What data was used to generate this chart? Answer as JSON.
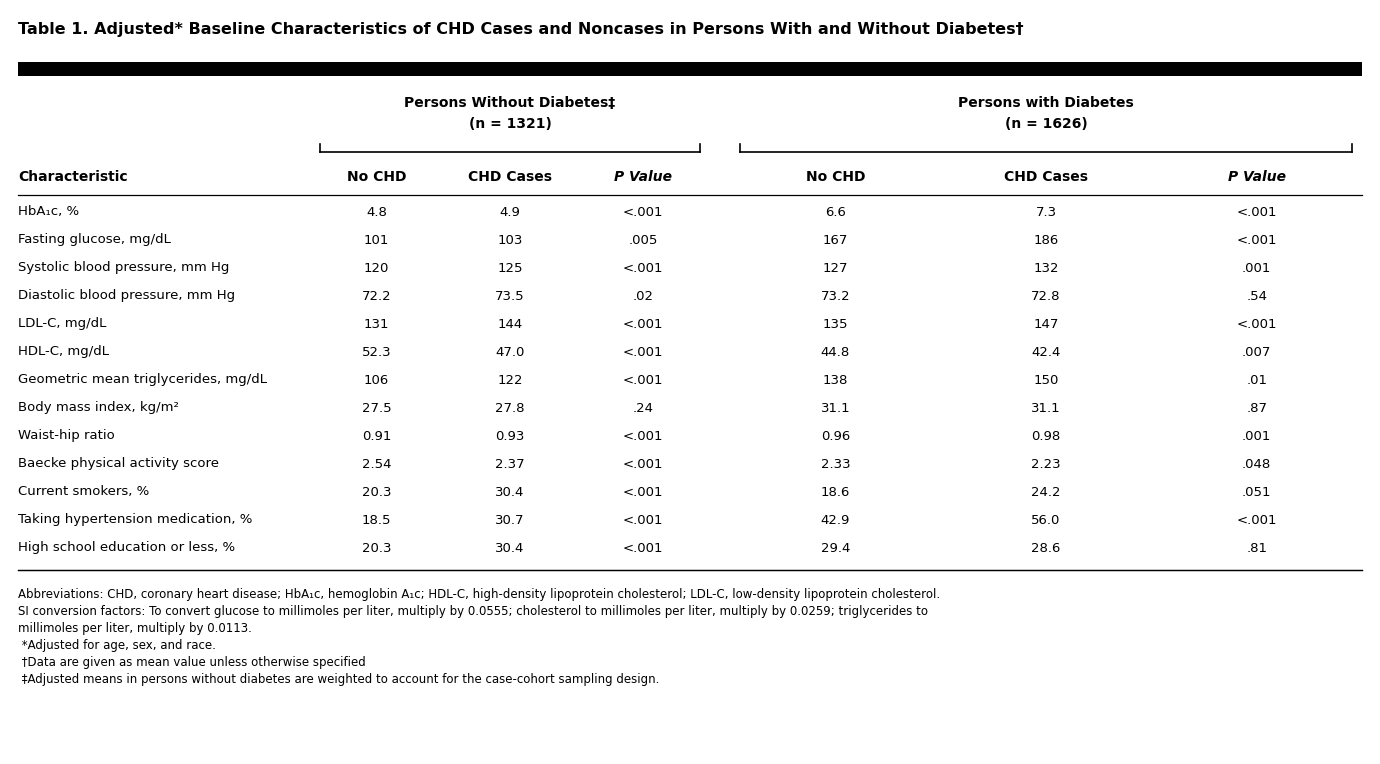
{
  "title": "Table 1. Adjusted* Baseline Characteristics of CHD Cases and Noncases in Persons With and Without Diabetes†",
  "group1_header": "Persons Without Diabetes‡",
  "group1_n": "(n = 1321)",
  "group2_header": "Persons with Diabetes",
  "group2_n": "(n = 1626)",
  "col_headers": [
    "No CHD",
    "CHD Cases",
    "P Value",
    "No CHD",
    "CHD Cases",
    "P Value"
  ],
  "characteristic_col": "Characteristic",
  "characteristics": [
    "HbA₁c, %",
    "Fasting glucose, mg/dL",
    "Systolic blood pressure, mm Hg",
    "Diastolic blood pressure, mm Hg",
    "LDL-C, mg/dL",
    "HDL-C, mg/dL",
    "Geometric mean triglycerides, mg/dL",
    "Body mass index, kg/m²",
    "Waist-hip ratio",
    "Baecke physical activity score",
    "Current smokers, %",
    "Taking hypertension medication, %",
    "High school education or less, %"
  ],
  "data": [
    [
      "4.8",
      "4.9",
      "<.001",
      "6.6",
      "7.3",
      "<.001"
    ],
    [
      "101",
      "103",
      ".005",
      "167",
      "186",
      "<.001"
    ],
    [
      "120",
      "125",
      "<.001",
      "127",
      "132",
      ".001"
    ],
    [
      "72.2",
      "73.5",
      ".02",
      "73.2",
      "72.8",
      ".54"
    ],
    [
      "131",
      "144",
      "<.001",
      "135",
      "147",
      "<.001"
    ],
    [
      "52.3",
      "47.0",
      "<.001",
      "44.8",
      "42.4",
      ".007"
    ],
    [
      "106",
      "122",
      "<.001",
      "138",
      "150",
      ".01"
    ],
    [
      "27.5",
      "27.8",
      ".24",
      "31.1",
      "31.1",
      ".87"
    ],
    [
      "0.91",
      "0.93",
      "<.001",
      "0.96",
      "0.98",
      ".001"
    ],
    [
      "2.54",
      "2.37",
      "<.001",
      "2.33",
      "2.23",
      ".048"
    ],
    [
      "20.3",
      "30.4",
      "<.001",
      "18.6",
      "24.2",
      ".051"
    ],
    [
      "18.5",
      "30.7",
      "<.001",
      "42.9",
      "56.0",
      "<.001"
    ],
    [
      "20.3",
      "30.4",
      "<.001",
      "29.4",
      "28.6",
      ".81"
    ]
  ],
  "footnote_line1": "Abbreviations: CHD, coronary heart disease; HbA₁c, hemoglobin A₁c; HDL-C, high-density lipoprotein cholesterol; LDL-C, low-density lipoprotein cholesterol.",
  "footnote_line2": "SI conversion factors: To convert glucose to millimoles per liter, multiply by 0.0555; cholesterol to millimoles per liter, multiply by 0.0259; triglycerides to",
  "footnote_line3": "millimoles per liter, multiply by 0.0113.",
  "footnote_line4": " *Adjusted for age, sex, and race.",
  "footnote_line5": " †Data are given as mean value unless otherwise specified",
  "footnote_line6": " ‡Adjusted means in persons without diabetes are weighted to account for the case-cohort sampling design.",
  "bg_color": "#ffffff",
  "text_color": "#000000"
}
